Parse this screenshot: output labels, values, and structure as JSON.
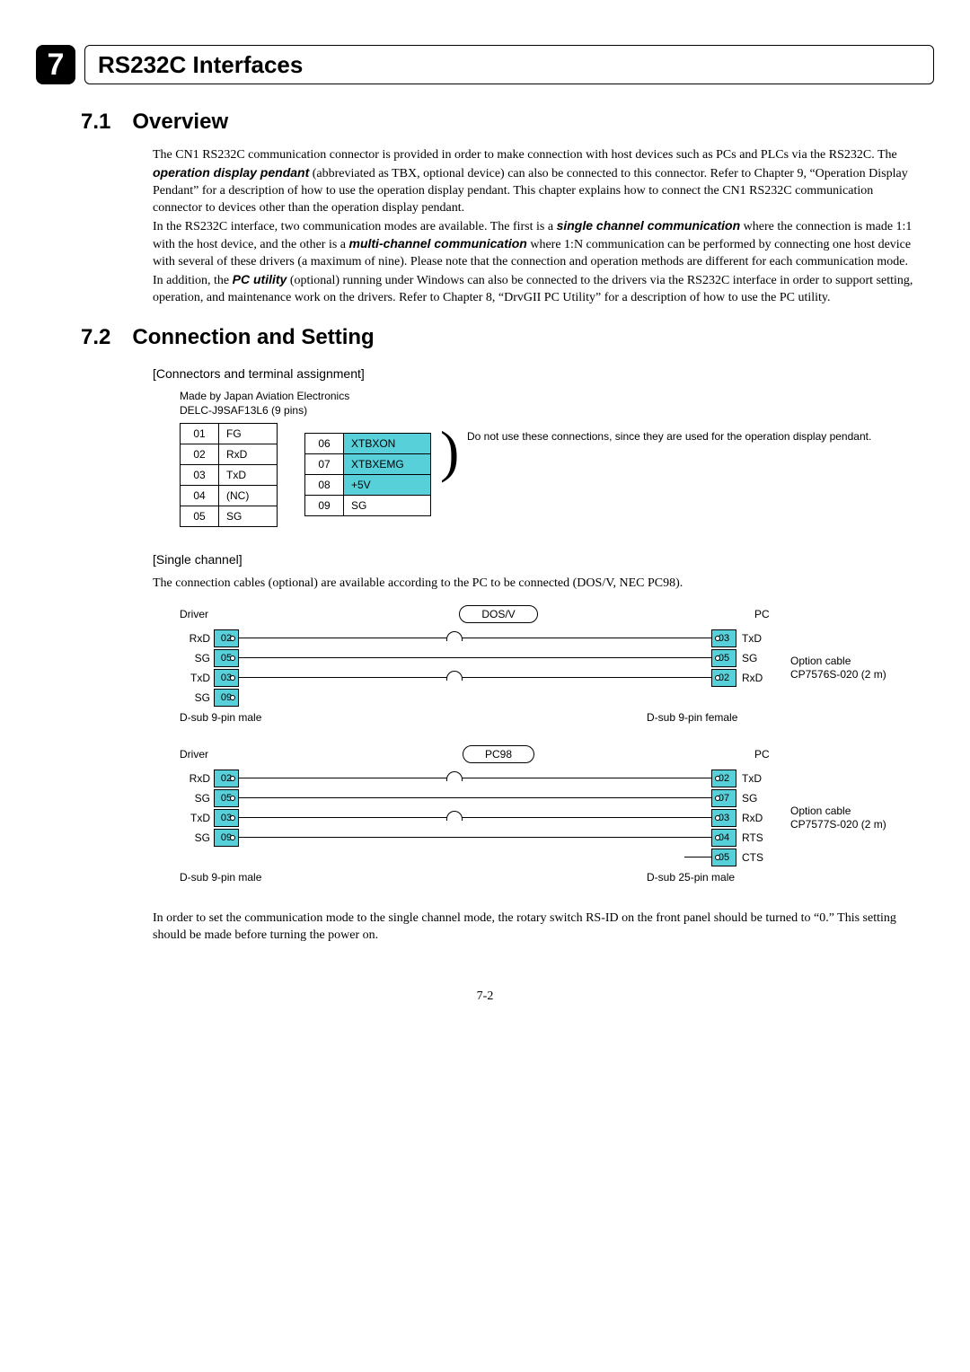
{
  "chapter": {
    "num": "7",
    "title": "RS232C Interfaces"
  },
  "sec1": {
    "num": "7.1",
    "title": "Overview",
    "p1a": "The CN1 RS232C communication connector is provided in order to make connection with host devices such as PCs and PLCs via the RS232C. The ",
    "p1b": "operation display pendant",
    "p1c": " (abbreviated as TBX, optional device) can also be connected to this connector. Refer to Chapter 9, “Operation Display Pendant” for a description of how to use the operation display pendant. This chapter explains how to connect the CN1 RS232C communication connector to devices other than the operation display pendant.",
    "p2a": "In the RS232C interface, two communication modes are available. The first is a ",
    "p2b": "single channel communication",
    "p2c": " where the connection is made 1:1 with the host device, and the other is a ",
    "p2d": "multi-channel communication",
    "p2e": " where 1:N communication can be performed by connecting one host device with several of these drivers (a maximum of nine). Please note that the connection and operation methods are different for each communication mode.",
    "p3a": "In addition, the ",
    "p3b": "PC utility",
    "p3c": " (optional) running under Windows can also be connected to the drivers via the RS232C interface in order to support setting, operation, and maintenance work on the drivers. Refer to Chapter 8, “DrvGII PC Utility” for a description of how to use the PC utility."
  },
  "sec2": {
    "num": "7.2",
    "title": "Connection and Setting",
    "sub1": "[Connectors and terminal assignment]",
    "note1": "Made by Japan Aviation Electronics",
    "note2": "DELC-J9SAF13L6 (9 pins)",
    "left_pins": [
      {
        "n": "01",
        "s": "FG"
      },
      {
        "n": "02",
        "s": "RxD"
      },
      {
        "n": "03",
        "s": "TxD"
      },
      {
        "n": "04",
        "s": "(NC)"
      },
      {
        "n": "05",
        "s": "SG"
      }
    ],
    "right_pins": [
      {
        "n": "06",
        "s": "XTBXON",
        "hi": true
      },
      {
        "n": "07",
        "s": "XTBXEMG",
        "hi": true
      },
      {
        "n": "08",
        "s": "+5V",
        "hi": true
      },
      {
        "n": "09",
        "s": "SG",
        "hi": false
      }
    ],
    "pin_warning": "Do not use these connections, since they are used for the operation display pendant.",
    "highlight_color": "#58d0da",
    "sub2": "[Single channel]",
    "p_single": "The connection cables (optional) are available according to the PC to be connected (DOS/V, NEC PC98).",
    "dia1": {
      "left_header": "Driver",
      "cap": "DOS/V",
      "right_header": "PC",
      "left": [
        {
          "sig": "RxD",
          "pin": "02"
        },
        {
          "sig": "SG",
          "pin": "05"
        },
        {
          "sig": "TxD",
          "pin": "03"
        },
        {
          "sig": "SG",
          "pin": "09"
        }
      ],
      "right": [
        {
          "pin": "03",
          "sig": "TxD"
        },
        {
          "pin": "05",
          "sig": "SG"
        },
        {
          "pin": "02",
          "sig": "RxD"
        }
      ],
      "left_conn": "D-sub 9-pin male",
      "right_conn": "D-sub 9-pin female",
      "opt1": "Option cable",
      "opt2": "CP7576S-020 (2 m)"
    },
    "dia2": {
      "left_header": "Driver",
      "cap": "PC98",
      "right_header": "PC",
      "left": [
        {
          "sig": "RxD",
          "pin": "02"
        },
        {
          "sig": "SG",
          "pin": "05"
        },
        {
          "sig": "TxD",
          "pin": "03"
        },
        {
          "sig": "SG",
          "pin": "09"
        }
      ],
      "right": [
        {
          "pin": "02",
          "sig": "TxD"
        },
        {
          "pin": "07",
          "sig": "SG"
        },
        {
          "pin": "03",
          "sig": "RxD"
        },
        {
          "pin": "04",
          "sig": "RTS"
        },
        {
          "pin": "05",
          "sig": "CTS"
        }
      ],
      "left_conn": "D-sub 9-pin male",
      "right_conn": "D-sub 25-pin male",
      "opt1": "Option cable",
      "opt2": "CP7577S-020 (2 m)"
    },
    "p_end": "In order to set the communication mode to the single channel mode, the rotary switch RS-ID on the front panel should be turned to “0.” This setting should be made before turning the power on."
  },
  "page": "7-2"
}
